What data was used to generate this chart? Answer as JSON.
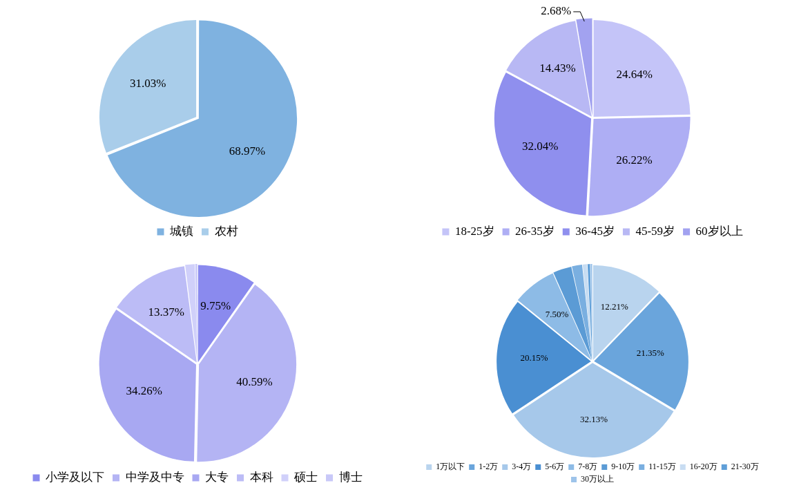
{
  "chart_data": [
    {
      "type": "pie",
      "categories": [
        "城镇",
        "农村"
      ],
      "values": [
        68.97,
        31.03
      ],
      "colors": [
        "#7fb2e0",
        "#a9cdea"
      ],
      "value_labels": [
        "68.97%",
        "31.03%"
      ],
      "legend": "bottom"
    },
    {
      "type": "pie",
      "categories": [
        "18-25岁",
        "26-35岁",
        "36-45岁",
        "45-59岁",
        "60岁以上"
      ],
      "values": [
        24.64,
        26.22,
        32.04,
        14.43,
        2.68
      ],
      "colors": [
        "#c4c4f8",
        "#aeaef4",
        "#8f8fee",
        "#b8b8f4",
        "#a2a2f0"
      ],
      "value_labels": [
        "24.64%",
        "26.22%",
        "32.04%",
        "14.43%",
        "2.68%"
      ],
      "legend": "bottom"
    },
    {
      "type": "pie",
      "categories": [
        "小学及以下",
        "中学及中专",
        "大专",
        "本科",
        "硕士",
        "博士"
      ],
      "values": [
        9.75,
        40.59,
        34.26,
        13.37,
        1.63,
        0.4
      ],
      "colors": [
        "#8a8aee",
        "#b4b4f4",
        "#a8a8f2",
        "#bcbcf6",
        "#d0d0fa",
        "#c8c8f8"
      ],
      "value_labels": [
        "9.75%",
        "40.59%",
        "34.26%",
        "13.37%",
        null,
        null
      ],
      "legend": "bottom"
    },
    {
      "type": "pie",
      "categories": [
        "1万以下",
        "1-2万",
        "3-4万",
        "5-6万",
        "7-8万",
        "9-10万",
        "11-15万",
        "16-20万",
        "21-30万",
        "30万以上"
      ],
      "values": [
        12.21,
        21.35,
        32.13,
        20.15,
        7.5,
        3.2,
        1.8,
        0.8,
        0.5,
        0.36
      ],
      "colors": [
        "#b9d4ee",
        "#6aa5dc",
        "#a6c8ea",
        "#4a8fd2",
        "#8dbbe6",
        "#5b9bd5",
        "#7aafe0",
        "#c8ddf2",
        "#5f9fd8",
        "#9ec4ea"
      ],
      "value_labels": [
        "12.21%",
        "21.35%",
        "32.13%",
        "20.15%",
        "7.50%",
        null,
        null,
        null,
        null,
        null
      ],
      "legend": "bottom"
    }
  ]
}
